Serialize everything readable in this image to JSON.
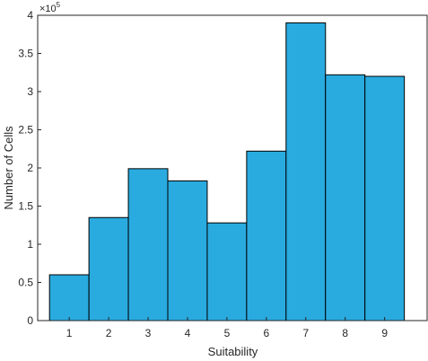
{
  "chart_data": {
    "type": "bar",
    "categories": [
      "1",
      "2",
      "3",
      "4",
      "5",
      "6",
      "7",
      "8",
      "9"
    ],
    "values": [
      60000,
      135000,
      199000,
      183000,
      128000,
      222000,
      390000,
      322000,
      320000
    ],
    "xlabel": "Suitability",
    "ylabel": "Number of Cells",
    "ylim": [
      0,
      400000
    ],
    "y_ticks": [
      "0",
      "0.5",
      "1",
      "1.5",
      "2",
      "2.5",
      "3",
      "3.5",
      "4"
    ],
    "y_exponent": {
      "base": "×10",
      "power": "5"
    },
    "bar_color": "#29abe0",
    "bar_edge_color": "#000000",
    "grid": false
  }
}
